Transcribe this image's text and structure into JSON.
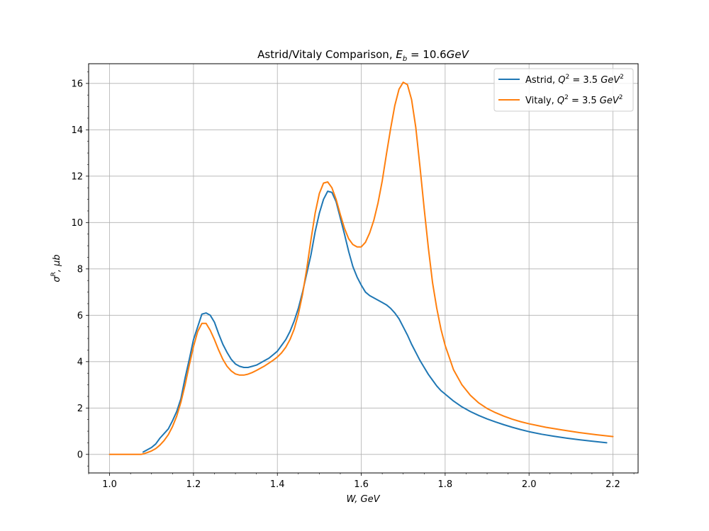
{
  "chart_data": {
    "type": "line",
    "title_prefix": "Astrid/Vitaly Comparison, ",
    "title_math": "E",
    "title_math_sub": "b",
    "title_math_rest": " = 10.6",
    "title_math_unit": "GeV",
    "xlabel": "W, GeV",
    "ylabel_symbol": "σ",
    "ylabel_sup": "R",
    "ylabel_rest": ", μb",
    "xlim": [
      0.95,
      2.26
    ],
    "ylim": [
      -0.8,
      16.85
    ],
    "xticks": [
      1.0,
      1.2,
      1.4,
      1.6,
      1.8,
      2.0,
      2.2
    ],
    "xtick_labels": [
      "1.0",
      "1.2",
      "1.4",
      "1.6",
      "1.8",
      "2.0",
      "2.2"
    ],
    "yticks": [
      0,
      2,
      4,
      6,
      8,
      10,
      12,
      14,
      16
    ],
    "ytick_labels": [
      "0",
      "2",
      "4",
      "6",
      "8",
      "10",
      "12",
      "14",
      "16"
    ],
    "grid": true,
    "legend_position": "top-right",
    "series": [
      {
        "name": "Astrid, Q² = 3.5 GeV²",
        "color": "#1f77b4",
        "x": [
          1.08,
          1.09,
          1.1,
          1.11,
          1.12,
          1.13,
          1.14,
          1.15,
          1.16,
          1.17,
          1.18,
          1.19,
          1.2,
          1.21,
          1.22,
          1.23,
          1.24,
          1.25,
          1.26,
          1.27,
          1.28,
          1.29,
          1.3,
          1.31,
          1.32,
          1.33,
          1.34,
          1.35,
          1.36,
          1.37,
          1.38,
          1.39,
          1.4,
          1.41,
          1.42,
          1.43,
          1.44,
          1.45,
          1.46,
          1.47,
          1.48,
          1.49,
          1.5,
          1.51,
          1.52,
          1.53,
          1.54,
          1.55,
          1.56,
          1.57,
          1.58,
          1.59,
          1.6,
          1.61,
          1.62,
          1.63,
          1.64,
          1.65,
          1.66,
          1.67,
          1.68,
          1.69,
          1.7,
          1.71,
          1.72,
          1.73,
          1.74,
          1.75,
          1.76,
          1.77,
          1.78,
          1.79,
          1.8,
          1.82,
          1.84,
          1.86,
          1.88,
          1.9,
          1.92,
          1.94,
          1.96,
          1.98,
          2.0,
          2.03,
          2.06,
          2.09,
          2.12,
          2.15,
          2.185
        ],
        "y": [
          0.1,
          0.2,
          0.3,
          0.45,
          0.7,
          0.9,
          1.1,
          1.45,
          1.85,
          2.4,
          3.3,
          4.1,
          4.95,
          5.5,
          6.05,
          6.1,
          6.0,
          5.7,
          5.2,
          4.75,
          4.4,
          4.1,
          3.9,
          3.8,
          3.75,
          3.75,
          3.8,
          3.85,
          3.95,
          4.05,
          4.15,
          4.3,
          4.45,
          4.7,
          4.95,
          5.3,
          5.75,
          6.3,
          7.0,
          7.8,
          8.6,
          9.6,
          10.4,
          11.0,
          11.35,
          11.3,
          10.9,
          10.2,
          9.5,
          8.75,
          8.1,
          7.65,
          7.3,
          7.0,
          6.85,
          6.75,
          6.65,
          6.55,
          6.45,
          6.3,
          6.1,
          5.85,
          5.5,
          5.15,
          4.75,
          4.4,
          4.05,
          3.75,
          3.45,
          3.2,
          2.95,
          2.75,
          2.6,
          2.3,
          2.05,
          1.85,
          1.68,
          1.53,
          1.4,
          1.28,
          1.17,
          1.07,
          0.98,
          0.87,
          0.78,
          0.7,
          0.63,
          0.57,
          0.5
        ]
      },
      {
        "name": "Vitaly, Q² = 3.5 GeV²",
        "color": "#ff7f0e",
        "x": [
          1.0,
          1.02,
          1.04,
          1.06,
          1.075,
          1.08,
          1.09,
          1.1,
          1.11,
          1.12,
          1.13,
          1.14,
          1.15,
          1.16,
          1.17,
          1.18,
          1.19,
          1.2,
          1.21,
          1.22,
          1.23,
          1.24,
          1.25,
          1.26,
          1.27,
          1.28,
          1.29,
          1.3,
          1.31,
          1.32,
          1.33,
          1.34,
          1.35,
          1.36,
          1.37,
          1.38,
          1.39,
          1.4,
          1.41,
          1.42,
          1.43,
          1.44,
          1.45,
          1.46,
          1.47,
          1.48,
          1.49,
          1.5,
          1.51,
          1.52,
          1.53,
          1.54,
          1.55,
          1.56,
          1.57,
          1.58,
          1.59,
          1.6,
          1.61,
          1.62,
          1.63,
          1.64,
          1.65,
          1.66,
          1.67,
          1.68,
          1.69,
          1.7,
          1.71,
          1.72,
          1.73,
          1.74,
          1.75,
          1.76,
          1.77,
          1.78,
          1.79,
          1.8,
          1.82,
          1.84,
          1.86,
          1.88,
          1.9,
          1.92,
          1.94,
          1.96,
          1.98,
          2.0,
          2.04,
          2.08,
          2.12,
          2.16,
          2.2
        ],
        "y": [
          0.0,
          0.0,
          0.0,
          0.0,
          0.0,
          0.02,
          0.08,
          0.15,
          0.25,
          0.4,
          0.6,
          0.85,
          1.2,
          1.65,
          2.25,
          3.0,
          3.85,
          4.65,
          5.3,
          5.65,
          5.65,
          5.35,
          4.95,
          4.5,
          4.1,
          3.8,
          3.6,
          3.47,
          3.42,
          3.42,
          3.46,
          3.53,
          3.62,
          3.72,
          3.82,
          3.94,
          4.06,
          4.2,
          4.38,
          4.62,
          4.95,
          5.4,
          6.05,
          6.9,
          8.0,
          9.25,
          10.4,
          11.25,
          11.7,
          11.75,
          11.5,
          11.0,
          10.35,
          9.75,
          9.3,
          9.05,
          8.95,
          8.95,
          9.15,
          9.55,
          10.1,
          10.85,
          11.8,
          12.95,
          14.05,
          15.05,
          15.75,
          16.05,
          15.95,
          15.3,
          14.1,
          12.4,
          10.6,
          8.9,
          7.4,
          6.3,
          5.4,
          4.7,
          3.65,
          3.0,
          2.55,
          2.22,
          1.98,
          1.8,
          1.65,
          1.52,
          1.41,
          1.32,
          1.17,
          1.05,
          0.94,
          0.85,
          0.77
        ]
      }
    ]
  },
  "legend": [
    {
      "label_prefix": "Astrid, ",
      "q": "Q",
      "q_sup": "2",
      "q_mid": " = 3.5 ",
      "unit": "GeV",
      "unit_sup": "2"
    },
    {
      "label_prefix": "Vitaly, ",
      "q": "Q",
      "q_sup": "2",
      "q_mid": " = 3.5 ",
      "unit": "GeV",
      "unit_sup": "2"
    }
  ]
}
